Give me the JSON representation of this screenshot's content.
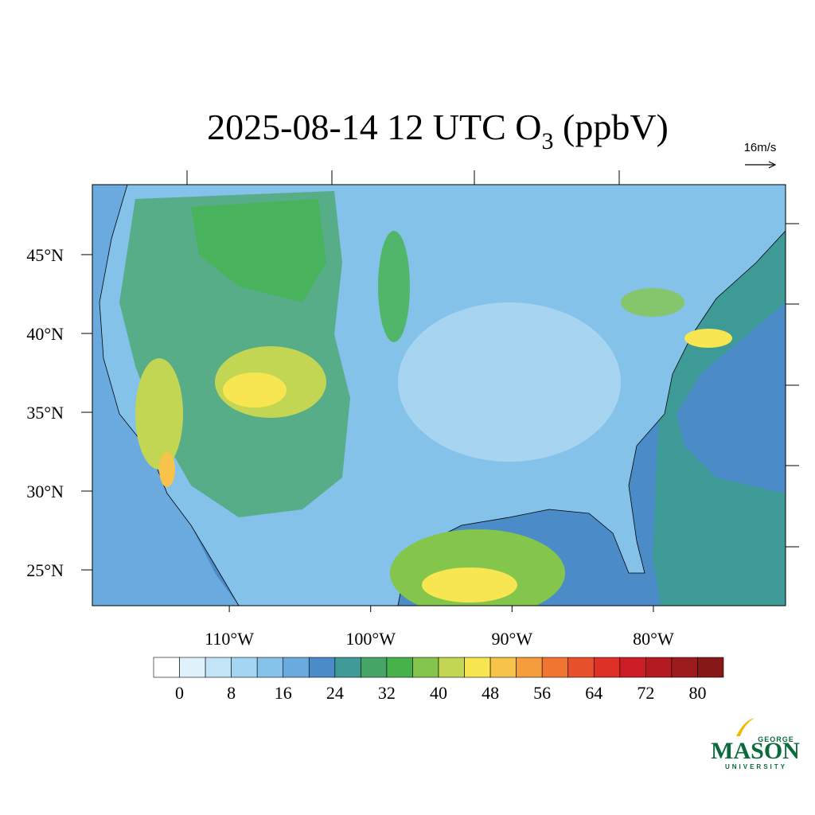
{
  "title": {
    "main": "2025-08-14 12 UTC O",
    "subscript": "3",
    "units": "(ppbV)"
  },
  "map": {
    "lon_range": [
      -119.69,
      -70.65
    ],
    "lat_range": [
      22.73,
      49.44
    ],
    "lat_ticks": [
      {
        "value": 25,
        "label": "25°N"
      },
      {
        "value": 30,
        "label": "30°N"
      },
      {
        "value": 35,
        "label": "35°N"
      },
      {
        "value": 40,
        "label": "40°N"
      },
      {
        "value": 45,
        "label": "45°N"
      }
    ],
    "lon_ticks": [
      {
        "value": -110,
        "label": "110°W"
      },
      {
        "value": -100,
        "label": "100°W"
      },
      {
        "value": -90,
        "label": "90°W"
      },
      {
        "value": -80,
        "label": "80°W"
      }
    ]
  },
  "colorbar": {
    "levels": [
      0,
      4,
      8,
      12,
      16,
      20,
      24,
      28,
      32,
      36,
      40,
      44,
      48,
      52,
      56,
      60,
      64,
      68,
      72,
      76,
      80
    ],
    "colors": [
      "#ffffff",
      "#dff1fb",
      "#c2e4f6",
      "#a3d6f3",
      "#85c2ea",
      "#6aaadf",
      "#4a8bc8",
      "#3e9a96",
      "#47a567",
      "#45b34a",
      "#84c54c",
      "#c2d654",
      "#f7e651",
      "#f8c34a",
      "#f59d3d",
      "#f17431",
      "#e8502b",
      "#dd3127",
      "#cc1d26",
      "#b31a22",
      "#9b1a1d",
      "#861818"
    ],
    "ticks": [
      0,
      8,
      16,
      24,
      32,
      40,
      48,
      56,
      64,
      72,
      80
    ]
  },
  "vector_reference": {
    "label": "16m/s"
  },
  "logo": {
    "top": "GEORGE",
    "main": "MASON",
    "bottom": "UNIVERSITY"
  }
}
